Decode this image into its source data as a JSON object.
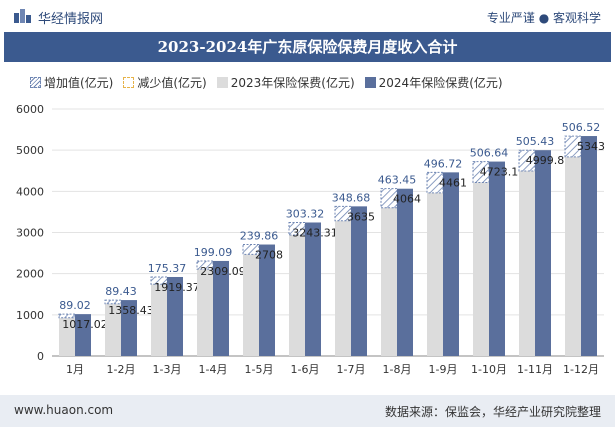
{
  "header": {
    "brand": "华经情报网",
    "tagline": "专业严谨 ● 客观科学"
  },
  "title": "2023-2024年广东原保险保费月度收入合计",
  "legend": {
    "increase": "增加值(亿元)",
    "decrease": "减少值(亿元)",
    "s2023": "2023年保险保费(亿元)",
    "s2024": "2024年保险保费(亿元)"
  },
  "footer": {
    "website": "www.huaon.com",
    "source": "数据来源：保监会，华经产业研究院整理"
  },
  "colors": {
    "title_bg": "#3b5a8f",
    "bar_2023": "#dcdcdc",
    "bar_2024": "#5a6f9c",
    "increase": "#6f86b3",
    "decrease": "#e6b34a"
  },
  "chart_data": {
    "type": "bar",
    "title": "2023-2024年广东原保险保费月度收入合计",
    "categories": [
      "1月",
      "1-2月",
      "1-3月",
      "1-4月",
      "1-5月",
      "1-6月",
      "1-7月",
      "1-8月",
      "1-9月",
      "1-10月",
      "1-11月",
      "1-12月"
    ],
    "series": [
      {
        "name": "2023年保险保费(亿元)",
        "values": [
          928,
          1269,
          1744,
          2110,
          2468,
          2940,
          3286,
          3601,
          3964,
          4216,
          4494,
          4836
        ]
      },
      {
        "name": "2024年保险保费(亿元)",
        "values": [
          1017.02,
          1358.43,
          1919.37,
          2309.09,
          2708,
          3243.31,
          3635,
          4064,
          4461,
          4723.1,
          4999.8,
          5343
        ]
      },
      {
        "name": "增加值(亿元)",
        "values": [
          89.02,
          89.43,
          175.37,
          199.09,
          239.86,
          303.32,
          348.68,
          463.45,
          496.72,
          506.64,
          505.43,
          506.52
        ]
      }
    ],
    "ylim": [
      0,
      6000
    ],
    "yticks": [
      0,
      1000,
      2000,
      3000,
      4000,
      5000,
      6000
    ],
    "grid": true,
    "legend_position": "top"
  }
}
